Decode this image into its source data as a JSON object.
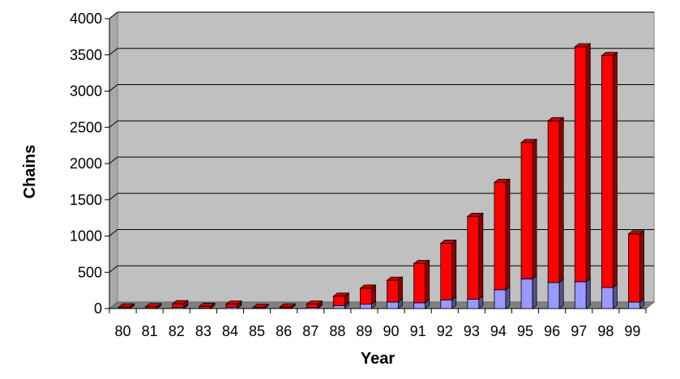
{
  "chart_data": {
    "type": "bar",
    "stacked": true,
    "three_d": true,
    "title": "",
    "xlabel": "Year",
    "ylabel": "Chains",
    "ylim": [
      0,
      4000
    ],
    "yticks": [
      0,
      500,
      1000,
      1500,
      2000,
      2500,
      3000,
      3500,
      4000
    ],
    "grid": true,
    "legend": "none",
    "categories": [
      "80",
      "81",
      "82",
      "83",
      "84",
      "85",
      "86",
      "87",
      "88",
      "89",
      "90",
      "91",
      "92",
      "93",
      "94",
      "95",
      "96",
      "97",
      "98",
      "99"
    ],
    "series": [
      {
        "color": "#9999FF",
        "values": [
          5,
          5,
          15,
          5,
          20,
          5,
          5,
          15,
          40,
          60,
          90,
          80,
          120,
          130,
          260,
          410,
          360,
          370,
          290,
          90
        ]
      },
      {
        "color": "#FF0000",
        "values": [
          15,
          20,
          50,
          25,
          40,
          10,
          15,
          45,
          130,
          220,
          300,
          540,
          780,
          1140,
          1480,
          1880,
          2230,
          3240,
          3200,
          940
        ]
      }
    ],
    "plot_background": "#C0C0C0"
  }
}
